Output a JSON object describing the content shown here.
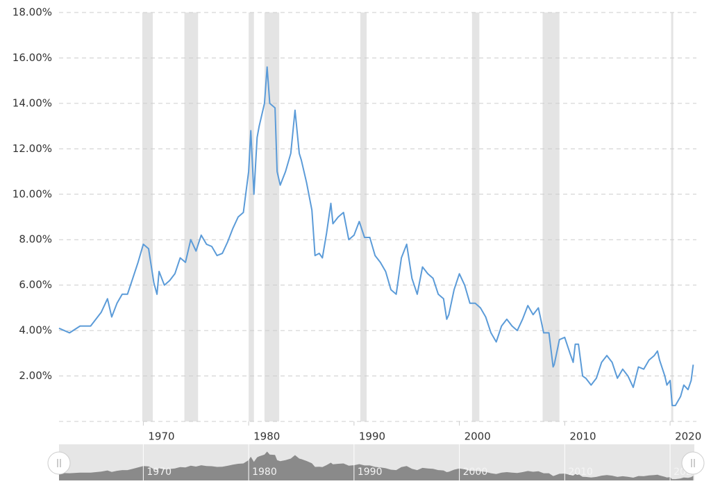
{
  "chart_data": {
    "type": "line",
    "xlim": [
      1962,
      2022.5
    ],
    "xticks": [
      1970,
      1980,
      1990,
      2000,
      2010,
      2020
    ],
    "ylim": [
      0,
      18
    ],
    "yticks": [
      {
        "value": 2,
        "label": "2.00%"
      },
      {
        "value": 4,
        "label": "4.00%"
      },
      {
        "value": 6,
        "label": "6.00%"
      },
      {
        "value": 8,
        "label": "8.00%"
      },
      {
        "value": 10,
        "label": "10.00%"
      },
      {
        "value": 12,
        "label": "12.00%"
      },
      {
        "value": 14,
        "label": "14.00%"
      },
      {
        "value": 16,
        "label": "16.00%"
      },
      {
        "value": 18,
        "label": "18.00%"
      }
    ],
    "grid": true,
    "recessions": [
      [
        1969.9,
        1970.9
      ],
      [
        1973.9,
        1975.2
      ],
      [
        1980.0,
        1980.5
      ],
      [
        1981.5,
        1982.9
      ],
      [
        1990.6,
        1991.2
      ],
      [
        2001.2,
        2001.9
      ],
      [
        2007.9,
        2009.5
      ],
      [
        2020.1,
        2020.3
      ]
    ],
    "recession_color": "#e4e4e4",
    "series": [
      {
        "color": "#5b9bd8",
        "x": [
          1962,
          1963,
          1964,
          1965,
          1966,
          1966.6,
          1967,
          1967.5,
          1968,
          1968.5,
          1969,
          1969.5,
          1970,
          1970.5,
          1971,
          1971.3,
          1971.5,
          1972,
          1972.5,
          1973,
          1973.5,
          1974,
          1974.5,
          1975,
          1975.5,
          1976,
          1976.5,
          1977,
          1977.5,
          1978,
          1978.5,
          1979,
          1979.5,
          1980,
          1980.2,
          1980.5,
          1980.8,
          1981,
          1981.5,
          1981.75,
          1982,
          1982.5,
          1982.7,
          1983,
          1983.5,
          1984,
          1984.4,
          1984.8,
          1985,
          1985.5,
          1986,
          1986.3,
          1986.7,
          1987,
          1987.4,
          1987.8,
          1988,
          1988.5,
          1989,
          1989.5,
          1990,
          1990.5,
          1991,
          1991.5,
          1992,
          1992.5,
          1993,
          1993.5,
          1994,
          1994.5,
          1995,
          1995.5,
          1996,
          1996.5,
          1997,
          1997.5,
          1998,
          1998.5,
          1998.8,
          1999,
          1999.5,
          2000,
          2000.5,
          2001,
          2001.5,
          2002,
          2002.5,
          2003,
          2003.5,
          2004,
          2004.5,
          2005,
          2005.5,
          2006,
          2006.5,
          2007,
          2007.5,
          2008,
          2008.5,
          2008.9,
          2009,
          2009.5,
          2010,
          2010.5,
          2010.8,
          2011,
          2011.3,
          2011.7,
          2012,
          2012.5,
          2013,
          2013.5,
          2014,
          2014.5,
          2015,
          2015.5,
          2016,
          2016.5,
          2017,
          2017.5,
          2018,
          2018.5,
          2018.8,
          2019,
          2019.5,
          2019.7,
          2020,
          2020.2,
          2020.5,
          2021,
          2021.3,
          2021.7,
          2022,
          2022.2
        ],
        "values": [
          4.1,
          3.9,
          4.2,
          4.2,
          4.8,
          5.4,
          4.6,
          5.2,
          5.6,
          5.6,
          6.3,
          7.0,
          7.8,
          7.6,
          6.1,
          5.6,
          6.6,
          6.0,
          6.2,
          6.5,
          7.2,
          7.0,
          8.0,
          7.5,
          8.2,
          7.8,
          7.7,
          7.3,
          7.4,
          7.9,
          8.5,
          9.0,
          9.2,
          11.0,
          12.8,
          10.0,
          12.5,
          13.0,
          14.0,
          15.6,
          14.0,
          13.8,
          11.0,
          10.4,
          11.0,
          11.8,
          13.7,
          11.8,
          11.5,
          10.5,
          9.3,
          7.3,
          7.4,
          7.2,
          8.3,
          9.6,
          8.7,
          9.0,
          9.2,
          8.0,
          8.2,
          8.8,
          8.1,
          8.1,
          7.3,
          7.0,
          6.6,
          5.8,
          5.6,
          7.2,
          7.8,
          6.3,
          5.6,
          6.8,
          6.5,
          6.3,
          5.6,
          5.4,
          4.5,
          4.7,
          5.8,
          6.5,
          6.0,
          5.2,
          5.2,
          5.0,
          4.6,
          3.9,
          3.5,
          4.2,
          4.5,
          4.2,
          4.0,
          4.5,
          5.1,
          4.7,
          5.0,
          3.9,
          3.9,
          2.4,
          2.5,
          3.6,
          3.7,
          3.0,
          2.6,
          3.4,
          3.4,
          2.0,
          1.9,
          1.6,
          1.9,
          2.6,
          2.9,
          2.6,
          1.9,
          2.3,
          2.0,
          1.5,
          2.4,
          2.3,
          2.7,
          2.9,
          3.1,
          2.7,
          2.0,
          1.6,
          1.8,
          0.7,
          0.7,
          1.1,
          1.6,
          1.4,
          1.8,
          2.5
        ]
      }
    ]
  }
}
